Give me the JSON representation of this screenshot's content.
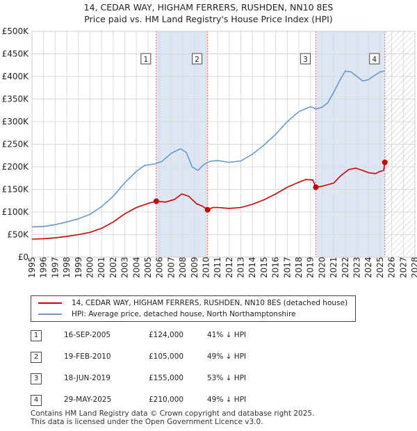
{
  "title_line1": "14, CEDAR WAY, HIGHAM FERRERS, RUSHDEN, NN10 8ES",
  "title_line2": "Price paid vs. HM Land Registry's House Price Index (HPI)",
  "colors": {
    "red": "#cc0000",
    "blue": "#6699cc",
    "shade": "#dde6f2",
    "grid": "#d9d9d9"
  },
  "legend": {
    "red_label": "14, CEDAR WAY, HIGHAM FERRERS, RUSHDEN, NN10 8ES (detached house)",
    "blue_label": "HPI: Average price, detached house, North Northamptonshire"
  },
  "chart_data": {
    "type": "line",
    "xlim": [
      1995,
      2028
    ],
    "ylim": [
      0,
      500000
    ],
    "yticks": [
      0,
      50000,
      100000,
      150000,
      200000,
      250000,
      300000,
      350000,
      400000,
      450000,
      500000
    ],
    "ytick_labels": [
      "£0",
      "£50K",
      "£100K",
      "£150K",
      "£200K",
      "£250K",
      "£300K",
      "£350K",
      "£400K",
      "£450K",
      "£500K"
    ],
    "xticks": [
      1995,
      1996,
      1997,
      1998,
      1999,
      2000,
      2001,
      2002,
      2003,
      2004,
      2005,
      2006,
      2007,
      2008,
      2009,
      2010,
      2011,
      2012,
      2013,
      2014,
      2015,
      2016,
      2017,
      2018,
      2019,
      2020,
      2021,
      2022,
      2023,
      2024,
      2025,
      2026,
      2027,
      2028
    ],
    "projection_start": 2025.4,
    "shade_ranges": [
      [
        2005.71,
        2010.13
      ],
      [
        2019.46,
        2025.41
      ]
    ],
    "series": [
      {
        "name": "HPI: Average price, detached house, North Northamptonshire",
        "color": "#6699cc",
        "x": [
          1995,
          1996,
          1997,
          1998,
          1999,
          2000,
          2001,
          2002,
          2003,
          2004,
          2004.7,
          2005.5,
          2006.2,
          2007,
          2007.8,
          2008.3,
          2008.8,
          2009.3,
          2009.8,
          2010.3,
          2011,
          2012,
          2013,
          2014,
          2015,
          2016,
          2017,
          2018,
          2019,
          2019.5,
          2020,
          2020.5,
          2021,
          2021.5,
          2022,
          2022.5,
          2023,
          2023.5,
          2024,
          2024.5,
          2025,
          2025.4
        ],
        "values": [
          67000,
          68000,
          72000,
          78000,
          85000,
          95000,
          112000,
          135000,
          165000,
          190000,
          203000,
          206000,
          212000,
          230000,
          240000,
          232000,
          200000,
          192000,
          205000,
          212000,
          214000,
          210000,
          213000,
          228000,
          248000,
          272000,
          300000,
          322000,
          333000,
          328000,
          332000,
          342000,
          365000,
          390000,
          412000,
          410000,
          400000,
          390000,
          393000,
          402000,
          410000,
          412000
        ]
      },
      {
        "name": "14, CEDAR WAY, HIGHAM FERRERS, RUSHDEN, NN10 8ES (detached house)",
        "color": "#cc0000",
        "x": [
          1995,
          1996,
          1997,
          1998,
          1999,
          2000,
          2001,
          2002,
          2003,
          2004,
          2005,
          2005.71,
          2006.5,
          2007.3,
          2007.9,
          2008.5,
          2009.2,
          2009.7,
          2010.13,
          2010.6,
          2011,
          2012,
          2013,
          2014,
          2015,
          2016,
          2017,
          2018,
          2018.6,
          2019.2,
          2019.46,
          2020,
          2021,
          2021.6,
          2022.3,
          2022.9,
          2023.5,
          2024,
          2024.6,
          2025,
          2025.3,
          2025.41
        ],
        "values": [
          40000,
          41000,
          43000,
          46000,
          50000,
          55000,
          64000,
          78000,
          96000,
          110000,
          119000,
          124000,
          122000,
          128000,
          140000,
          135000,
          118000,
          113000,
          105000,
          110000,
          110000,
          108000,
          110000,
          117000,
          127000,
          140000,
          155000,
          166000,
          172000,
          171000,
          155000,
          157000,
          164000,
          180000,
          194000,
          197000,
          192000,
          187000,
          185000,
          190000,
          192000,
          210000
        ]
      }
    ],
    "sales": [
      {
        "n": "1",
        "date": "16-SEP-2005",
        "x": 2005.71,
        "price": 124000,
        "price_label": "£124,000",
        "hpi": "41% ↓ HPI"
      },
      {
        "n": "2",
        "date": "19-FEB-2010",
        "x": 2010.13,
        "price": 105000,
        "price_label": "£105,000",
        "hpi": "49% ↓ HPI"
      },
      {
        "n": "3",
        "date": "18-JUN-2019",
        "x": 2019.46,
        "price": 155000,
        "price_label": "£155,000",
        "hpi": "53% ↓ HPI"
      },
      {
        "n": "4",
        "date": "29-MAY-2025",
        "x": 2025.41,
        "price": 210000,
        "price_label": "£210,000",
        "hpi": "49% ↓ HPI"
      }
    ]
  },
  "footer_line1": "Contains HM Land Registry data © Crown copyright and database right 2025.",
  "footer_line2": "This data is licensed under the Open Government Licence v3.0."
}
